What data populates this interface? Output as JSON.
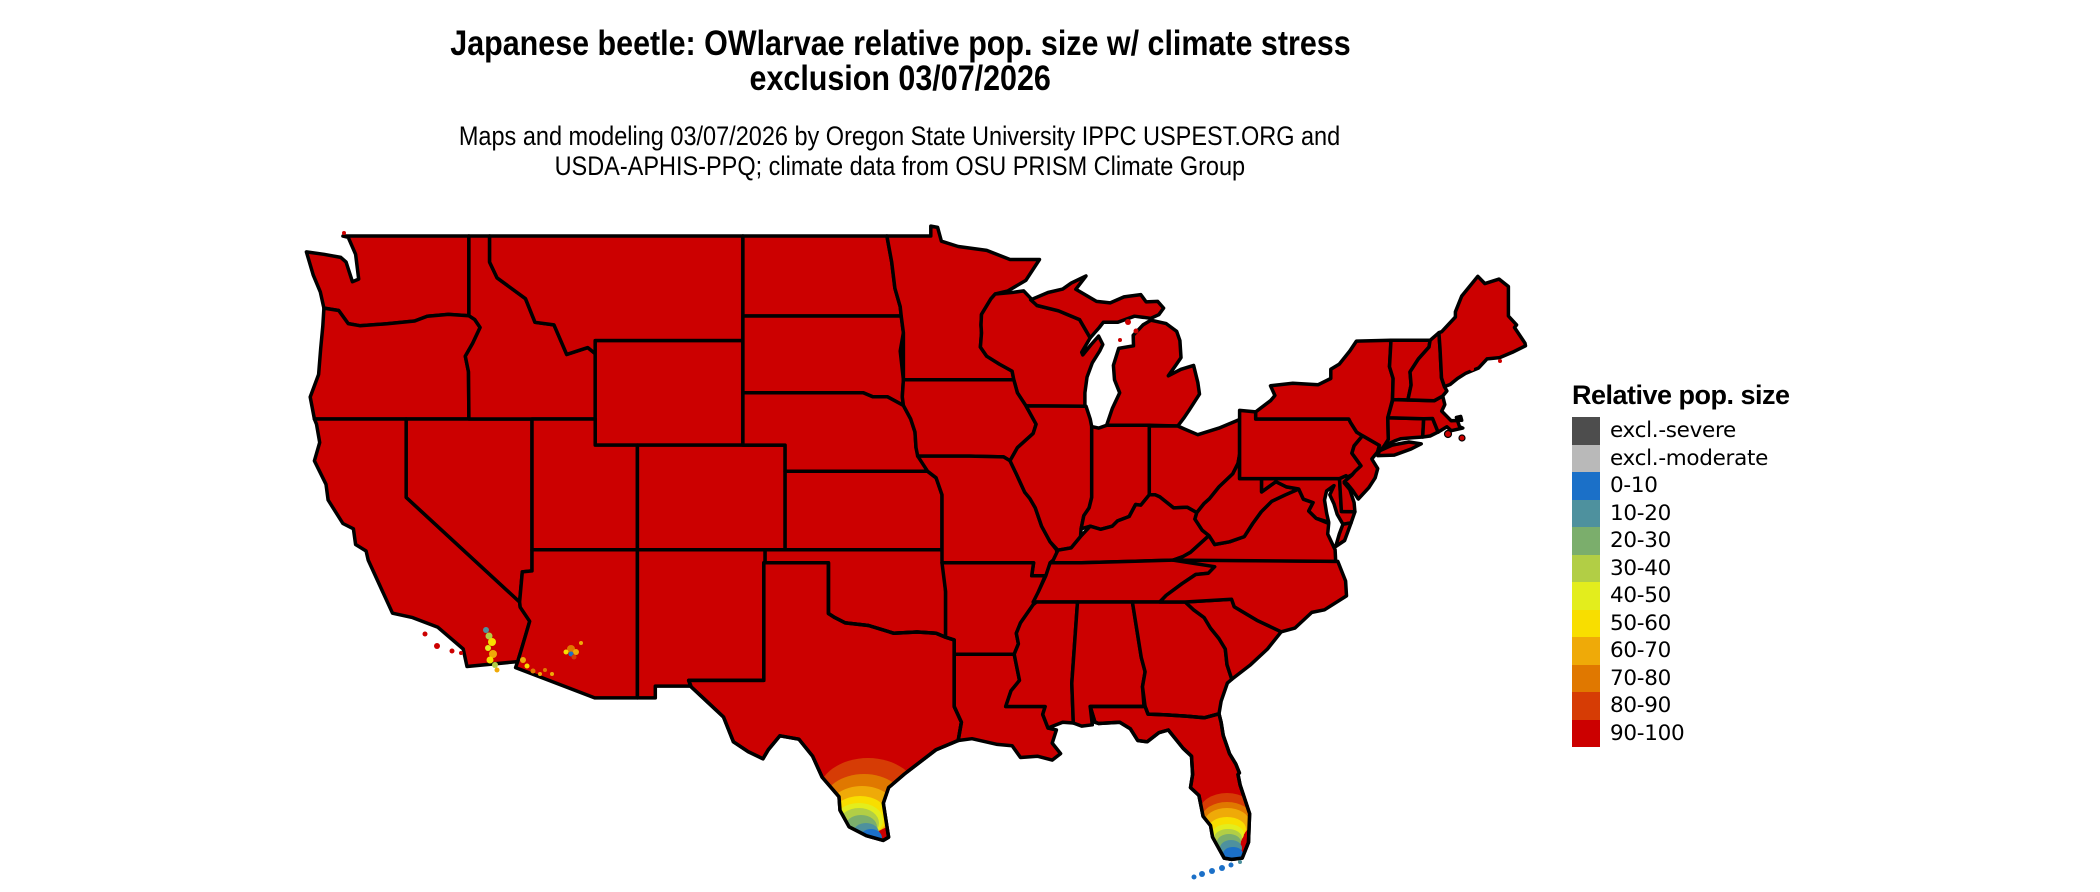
{
  "header": {
    "title_line1": "Japanese beetle: OWlarvae relative pop. size w/ climate stress",
    "title_line2": "exclusion 03/07/2026",
    "subtitle_line1": "Maps and modeling 03/07/2026 by Oregon State University IPPC USPEST.ORG and",
    "subtitle_line2": "USDA-APHIS-PPQ; climate data from OSU PRISM Climate Group"
  },
  "legend": {
    "title": "Relative pop. size",
    "classes": [
      {
        "label": "excl.-severe",
        "color": "#4D4D4D"
      },
      {
        "label": "excl.-moderate",
        "color": "#B9B9B9"
      },
      {
        "label": "0-10",
        "color": "#1B70C8"
      },
      {
        "label": "10-20",
        "color": "#4E919E"
      },
      {
        "label": "20-30",
        "color": "#7BAE6C"
      },
      {
        "label": "30-40",
        "color": "#B2CE45"
      },
      {
        "label": "40-50",
        "color": "#E3ED1D"
      },
      {
        "label": "50-60",
        "color": "#F8DE00"
      },
      {
        "label": "60-70",
        "color": "#EFAA08"
      },
      {
        "label": "70-80",
        "color": "#E07800"
      },
      {
        "label": "80-90",
        "color": "#D63C05"
      },
      {
        "label": "90-100",
        "color": "#CC0000"
      }
    ]
  },
  "map": {
    "region": "Contiguous United States with state borders",
    "border_color": "#000000",
    "background_color": "#FFFFFF",
    "dominant_class": "90-100",
    "low_value_areas": [
      "southern tip of Texas (Rio Grande Valley) grading from 80-90 down to 0-10",
      "southern Florida and Florida Keys grading from 80-90 down to 0-10",
      "Salton Sea / Imperial Valley area of southern California (40-70 speckles)",
      "lower Colorado River near Yuma (50-80 speckles)",
      "south-central Arizona around Phoenix (orange ring with 0-10 center)"
    ]
  }
}
